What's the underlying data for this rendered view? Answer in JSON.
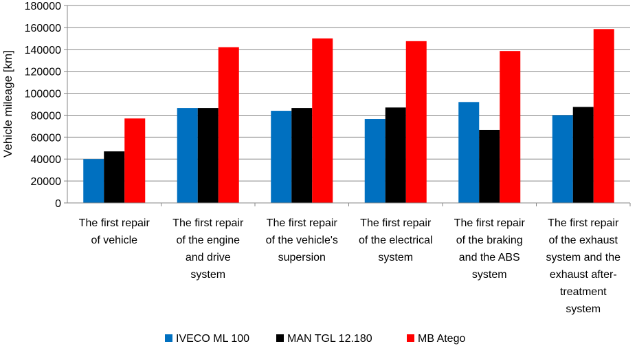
{
  "chart_data": {
    "type": "bar",
    "ylabel": "Vehicle mileage [km]",
    "xlabel": "",
    "ylim": [
      0,
      180000
    ],
    "ytick_step": 20000,
    "yticks": [
      "0",
      "20000",
      "40000",
      "60000",
      "80000",
      "100000",
      "120000",
      "140000",
      "160000",
      "180000"
    ],
    "grid": true,
    "legend": "bottom",
    "categories": [
      [
        "The first repair",
        "of vehicle"
      ],
      [
        "The first repair",
        "of the engine",
        "and drive",
        "system"
      ],
      [
        "The first repair",
        "of the vehicle's",
        "supersion"
      ],
      [
        "The first repair",
        "of the electrical",
        "system"
      ],
      [
        "The first repair",
        "of the braking",
        "and the ABS",
        "system"
      ],
      [
        "The first repair",
        "of the exhaust",
        "system and the",
        "exhaust after-",
        "treatment",
        "system"
      ]
    ],
    "series": [
      {
        "name": "IVECO ML 100",
        "color": "#0070C0",
        "values": [
          40000,
          86500,
          84000,
          76500,
          92000,
          80000
        ]
      },
      {
        "name": "MAN TGL 12.180",
        "color": "#000000",
        "values": [
          47000,
          86500,
          86500,
          87000,
          66500,
          87500
        ]
      },
      {
        "name": "MB Atego",
        "color": "#FF0000",
        "values": [
          77000,
          142000,
          150000,
          147500,
          138500,
          158500
        ]
      }
    ]
  }
}
